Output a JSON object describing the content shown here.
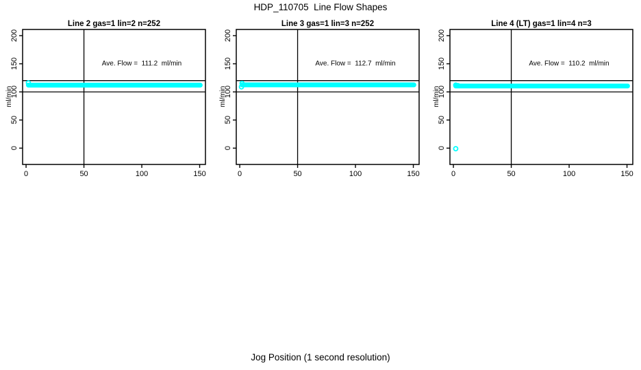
{
  "page": {
    "background_color": "#FFFFFF"
  },
  "chart_data": {
    "type": "scatter",
    "title": "HDP_110705  Line Flow Shapes",
    "xlabel": "Jog Position (1 second resolution)",
    "ylabel": "ml/min",
    "x_ticks": [
      0,
      50,
      100,
      150
    ],
    "y_ticks": [
      0,
      50,
      100,
      150,
      200
    ],
    "xlim": [
      -3,
      155
    ],
    "ylim": [
      -29,
      211
    ],
    "grid": false,
    "legend": "none",
    "marker": "open-circle",
    "point_color": "#00FFFF",
    "axis_color": "#000000",
    "ref_lines_y": [
      100,
      120
    ],
    "ref_line_x": 50,
    "panels": [
      {
        "title": "Line 2 gas=1 lin=2 n=252",
        "annotation": "Ave. Flow =  111.2  ml/min",
        "ave_flow_ml_min": 111.2,
        "n_points": 252,
        "band": {
          "x_start": 2,
          "x_end": 150.5,
          "y_level": 112
        },
        "lead_points": [
          {
            "x": 2,
            "y": 116
          }
        ],
        "outlier_points": []
      },
      {
        "title": "Line 3 gas=1 lin=3 n=252",
        "annotation": "Ave. Flow =  112.7  ml/min",
        "ave_flow_ml_min": 112.7,
        "n_points": 252,
        "band": {
          "x_start": 2,
          "x_end": 150.5,
          "y_level": 112.5
        },
        "lead_points": [
          {
            "x": 2,
            "y": 115
          },
          {
            "x": 1.5,
            "y": 109
          }
        ],
        "outlier_points": []
      },
      {
        "title": "Line 4 (LT) gas=1 lin=4 n=3",
        "annotation": "Ave. Flow =  110.2  ml/min",
        "ave_flow_ml_min": 110.2,
        "n_points": 3,
        "band": {
          "x_start": 2,
          "x_end": 150.5,
          "y_level": 110.5
        },
        "lead_points": [
          {
            "x": 2,
            "y": 112
          },
          {
            "x": 4,
            "y": 111
          }
        ],
        "outlier_points": [
          {
            "x": 2,
            "y": -1
          }
        ]
      }
    ]
  }
}
